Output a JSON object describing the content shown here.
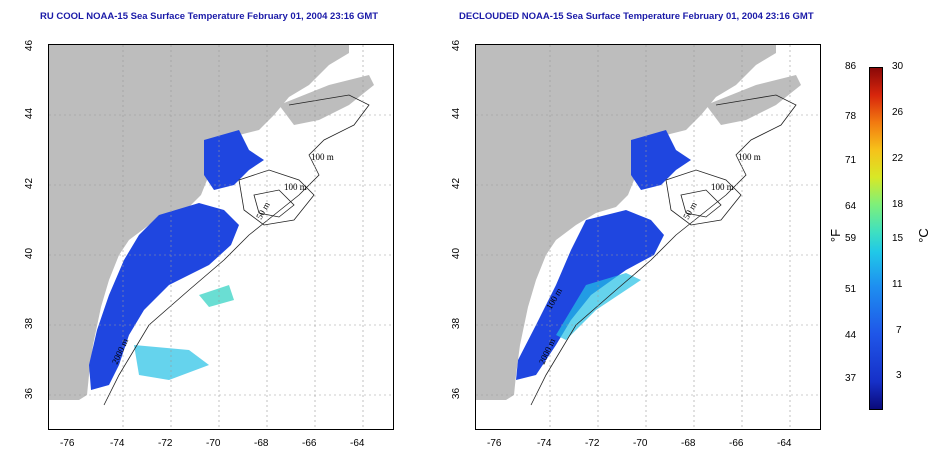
{
  "titles": {
    "left": "RU COOL NOAA-15 Sea Surface Temperature February 01, 2004 23:16 GMT",
    "right": "DECLOUDED NOAA-15 Sea Surface Temperature February 01, 2004 23:16 GMT"
  },
  "x_ticks": [
    "-76",
    "-74",
    "-72",
    "-70",
    "-68",
    "-66",
    "-64"
  ],
  "y_ticks": [
    "36",
    "38",
    "40",
    "42",
    "44",
    "46"
  ],
  "contours": {
    "left": [
      "100 m",
      "100 m",
      "50 m",
      "2000 m"
    ],
    "right": [
      "100 m",
      "100 m",
      "50 m",
      "2000 m",
      "100 m"
    ]
  },
  "colorbar": {
    "fahrenheit_ticks": [
      "86",
      "78",
      "71",
      "64",
      "59",
      "51",
      "44",
      "37"
    ],
    "celsius_ticks": [
      "30",
      "26",
      "22",
      "18",
      "15",
      "11",
      "7",
      "3"
    ],
    "unit_f": "°F",
    "unit_c": "°C"
  },
  "colors": {
    "land": "#bdbdbd",
    "title": "#1a1aa8",
    "cold": "#1f46e0",
    "mid": "#24c0e6"
  }
}
